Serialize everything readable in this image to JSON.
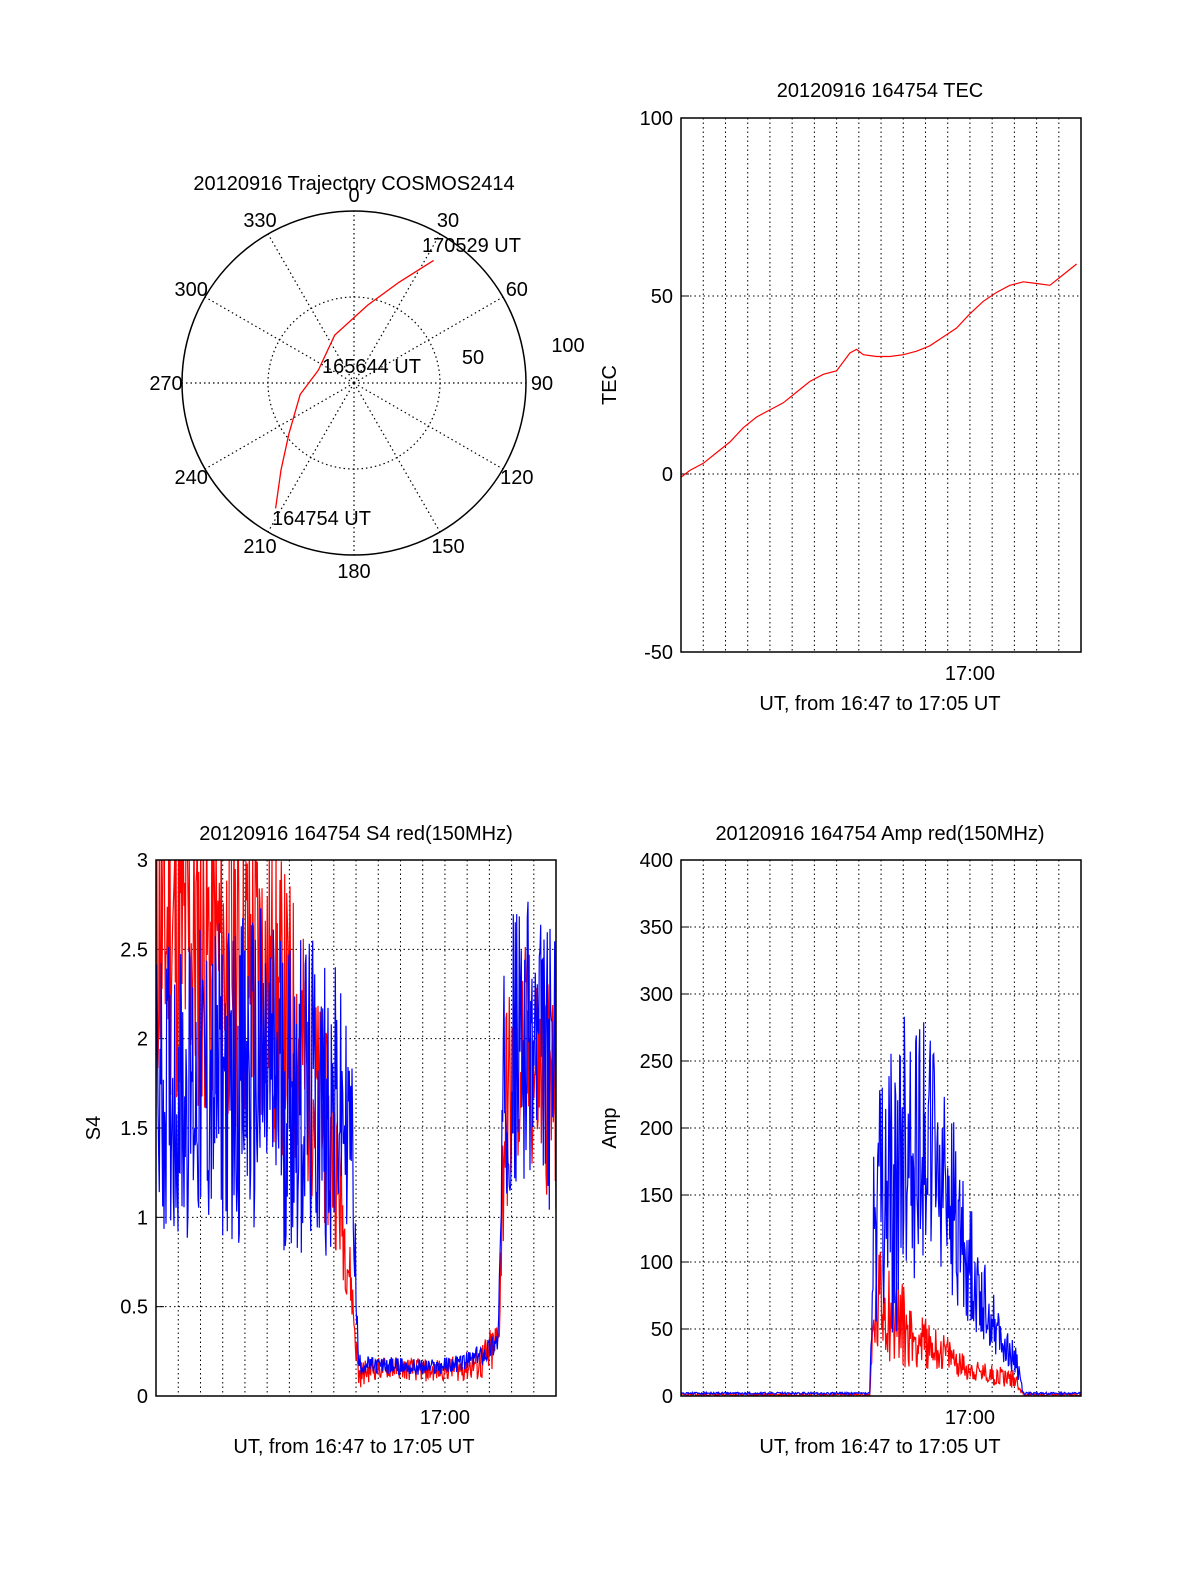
{
  "colors": {
    "series_red": "#ff0000",
    "series_blue": "#0000ff",
    "axis": "#000000",
    "grid": "#000000"
  },
  "chart_data": [
    {
      "id": "trajectory",
      "type": "polar",
      "title": "20120916 Trajectory COSMOS2414",
      "azimuth_labels": [
        "0",
        "30",
        "60",
        "90",
        "120",
        "150",
        "180",
        "210",
        "240",
        "270",
        "300",
        "330"
      ],
      "radial_labels": [
        "50",
        "100"
      ],
      "radial_range": [
        0,
        100
      ],
      "start_label": "164754 UT",
      "mid_label": "165644 UT",
      "end_label": "170529 UT",
      "track": [
        {
          "az": 212,
          "r": 86
        },
        {
          "az": 220,
          "r": 66
        },
        {
          "az": 232,
          "r": 48
        },
        {
          "az": 258,
          "r": 32
        },
        {
          "az": 290,
          "r": 22
        },
        {
          "az": 338,
          "r": 30
        },
        {
          "az": 10,
          "r": 46
        },
        {
          "az": 24,
          "r": 64
        },
        {
          "az": 33,
          "r": 85
        }
      ]
    },
    {
      "id": "tec",
      "type": "line",
      "title": "20120916 164754 TEC",
      "ylabel": "TEC",
      "xlabel": "UT, from 16:47 to 17:05 UT",
      "xtick_labels": [
        {
          "t": 17.0,
          "label": "17:00"
        }
      ],
      "xlim": [
        16.7833,
        17.0833
      ],
      "ylim": [
        -50,
        100
      ],
      "yticks": [
        "-50",
        "0",
        "50",
        "100"
      ],
      "grid": true,
      "series": [
        {
          "color": "red",
          "x": [
            16.783,
            16.79,
            16.8,
            16.81,
            16.82,
            16.83,
            16.84,
            16.85,
            16.86,
            16.87,
            16.88,
            16.89,
            16.9,
            16.91,
            16.915,
            16.92,
            16.93,
            16.94,
            16.95,
            16.96,
            16.97,
            16.98,
            16.99,
            17.0,
            17.01,
            17.02,
            17.03,
            17.04,
            17.05,
            17.06,
            17.07,
            17.08
          ],
          "y": [
            -1,
            1,
            3,
            6,
            9,
            13,
            16,
            18,
            20,
            23,
            26,
            28,
            29,
            34,
            35,
            33.5,
            33,
            33,
            33.5,
            34.5,
            36,
            38.5,
            41,
            45,
            48.5,
            51,
            53,
            54,
            53.5,
            53,
            56,
            59
          ]
        }
      ]
    },
    {
      "id": "s4",
      "type": "line",
      "title": "20120916 164754 S4 red(150MHz)",
      "ylabel": "S4",
      "xlabel": "UT, from 16:47 to 17:05 UT",
      "xtick_labels": [
        {
          "t": 17.0,
          "label": "17:00"
        }
      ],
      "xlim": [
        16.7833,
        17.0833
      ],
      "ylim": [
        0,
        3
      ],
      "yticks": [
        "0",
        "0.5",
        "1",
        "1.5",
        "2",
        "2.5",
        "3"
      ],
      "grid": true,
      "series": [
        {
          "color": "red",
          "x": [
            16.783,
            16.86,
            16.89,
            16.918,
            16.93,
            16.935,
            16.945,
            16.96,
            16.975,
            16.99,
            17.0,
            17.015,
            17.03,
            17.04,
            17.045,
            17.06,
            17.083
          ],
          "y": [
            2.6,
            2.4,
            2.0,
            1.3,
            0.6,
            0.12,
            0.15,
            0.16,
            0.15,
            0.14,
            0.15,
            0.16,
            0.2,
            0.3,
            1.6,
            1.9,
            1.7
          ],
          "spread": [
            0.6,
            0.6,
            0.5,
            0.3,
            0.1,
            0.05,
            0.04,
            0.04,
            0.04,
            0.04,
            0.04,
            0.05,
            0.08,
            0.1,
            0.4,
            0.4,
            0.4
          ]
        },
        {
          "color": "blue",
          "x": [
            16.783,
            16.86,
            16.89,
            16.918,
            16.93,
            16.935,
            16.945,
            16.96,
            16.975,
            16.99,
            17.0,
            17.015,
            17.03,
            17.04,
            17.045,
            17.06,
            17.083
          ],
          "y": [
            1.7,
            1.8,
            1.7,
            1.6,
            1.5,
            0.18,
            0.17,
            0.17,
            0.16,
            0.16,
            0.17,
            0.19,
            0.24,
            0.32,
            1.9,
            2.0,
            1.8
          ],
          "spread": [
            0.5,
            0.6,
            0.6,
            0.5,
            0.3,
            0.04,
            0.03,
            0.03,
            0.03,
            0.03,
            0.03,
            0.03,
            0.04,
            0.05,
            0.5,
            0.5,
            0.5
          ]
        }
      ]
    },
    {
      "id": "amp",
      "type": "line",
      "title": "20120916 164754 Amp red(150MHz)",
      "ylabel": "Amp",
      "xlabel": "UT, from 16:47 to 17:05 UT",
      "xtick_labels": [
        {
          "t": 17.0,
          "label": "17:00"
        }
      ],
      "xlim": [
        16.7833,
        17.0833
      ],
      "ylim": [
        0,
        400
      ],
      "yticks": [
        "0",
        "50",
        "100",
        "150",
        "200",
        "250",
        "300",
        "350",
        "400"
      ],
      "grid": true,
      "series": [
        {
          "color": "red",
          "x": [
            16.783,
            16.925,
            16.928,
            16.935,
            16.945,
            16.955,
            16.965,
            16.975,
            16.985,
            16.995,
            17.005,
            17.015,
            17.025,
            17.035,
            17.04,
            17.083
          ],
          "y": [
            1,
            1,
            55,
            75,
            60,
            45,
            40,
            35,
            30,
            22,
            18,
            16,
            15,
            12,
            1,
            1
          ],
          "spread": [
            0.5,
            0.5,
            25,
            30,
            25,
            15,
            12,
            10,
            8,
            6,
            5,
            5,
            5,
            4,
            0.5,
            0.5
          ]
        },
        {
          "color": "blue",
          "x": [
            16.783,
            16.925,
            16.928,
            16.935,
            16.945,
            16.955,
            16.965,
            16.975,
            16.985,
            16.995,
            17.005,
            17.015,
            17.025,
            17.035,
            17.04,
            17.083
          ],
          "y": [
            2,
            2,
            120,
            140,
            160,
            190,
            200,
            170,
            150,
            110,
            85,
            60,
            40,
            25,
            2,
            2
          ],
          "spread": [
            0.5,
            0.5,
            60,
            60,
            70,
            70,
            60,
            50,
            45,
            35,
            25,
            15,
            10,
            8,
            0.5,
            0.5
          ]
        }
      ]
    }
  ]
}
